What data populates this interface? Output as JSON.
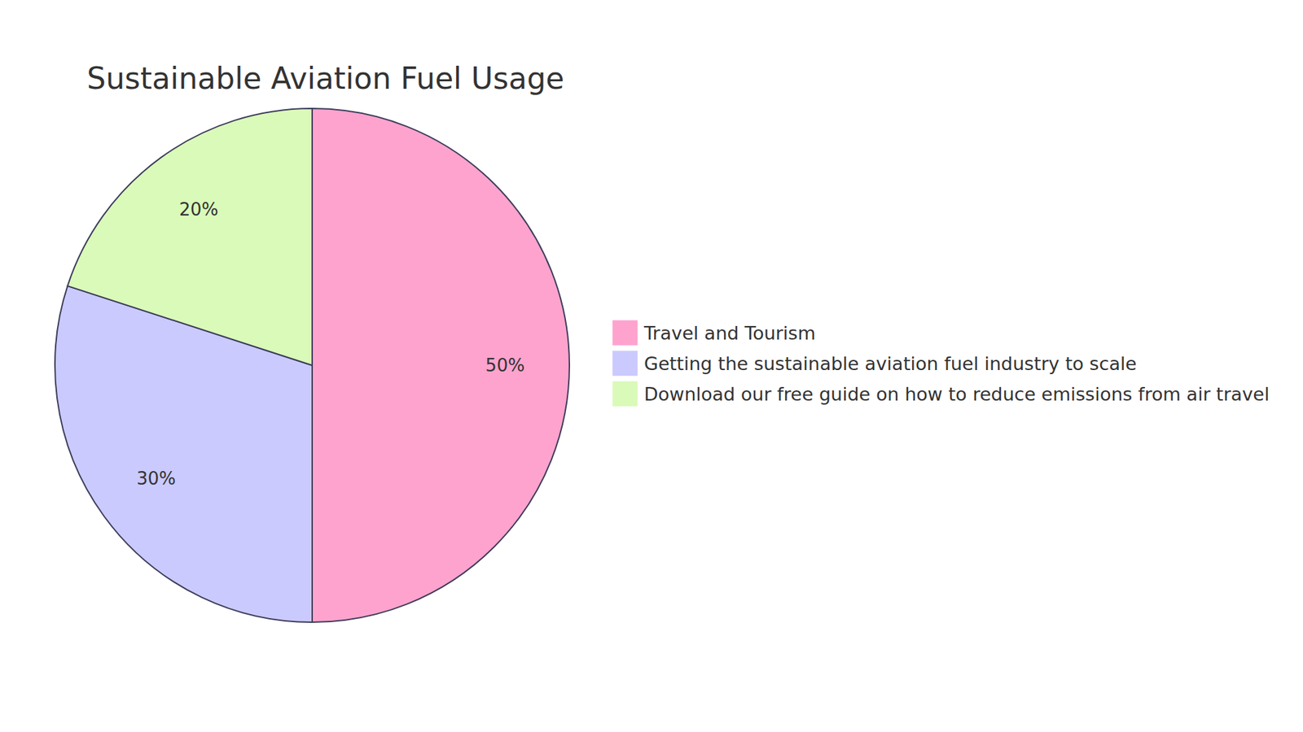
{
  "chart_data": {
    "type": "pie",
    "title": "Sustainable Aviation Fuel Usage",
    "categories": [
      "Travel and Tourism",
      "Getting the sustainable aviation fuel industry to scale",
      "Download our free guide on how to reduce emissions from air travel"
    ],
    "values": [
      50,
      30,
      20
    ],
    "value_labels": [
      "50%",
      "30%",
      "20%"
    ],
    "colors": [
      "#fea3ce",
      "#cacafe",
      "#dafab9"
    ],
    "data_labels": true,
    "legend": "right"
  }
}
